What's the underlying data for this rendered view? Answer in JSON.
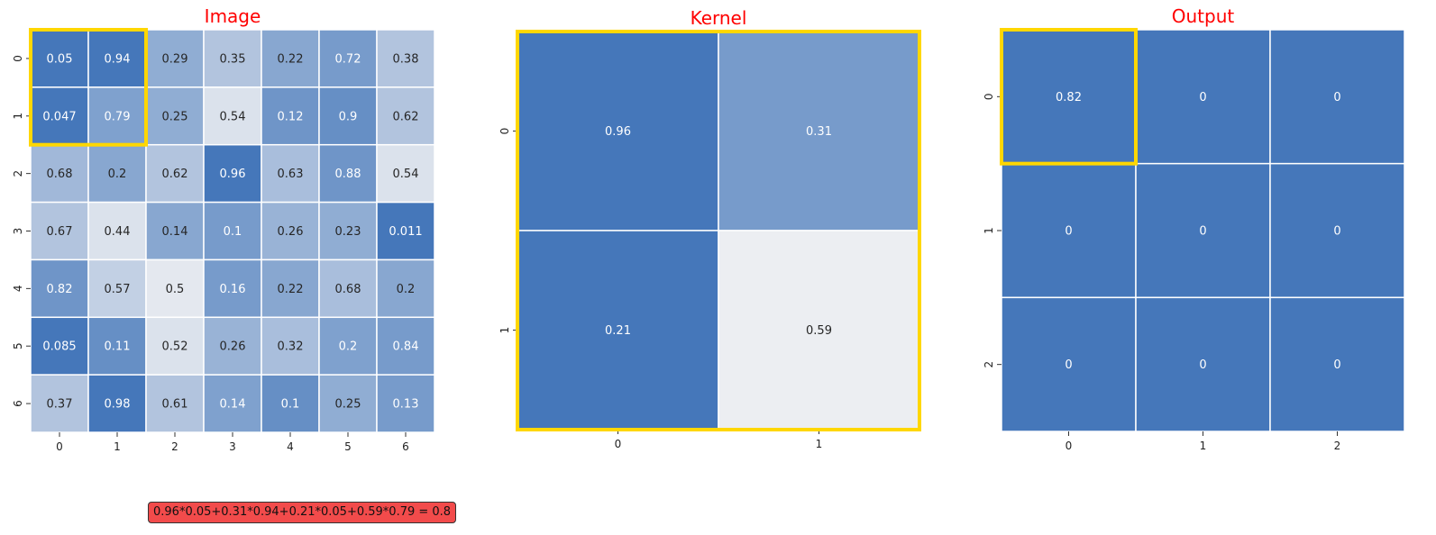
{
  "panels": [
    {
      "id": "image",
      "title": "Image",
      "row_ticks": [
        "0",
        "1",
        "2",
        "3",
        "4",
        "5",
        "6"
      ],
      "col_ticks": [
        "0",
        "1",
        "2",
        "3",
        "4",
        "5",
        "6"
      ],
      "values": [
        [
          "0.05",
          "0.94",
          "0.29",
          "0.35",
          "0.22",
          "0.72",
          "0.38"
        ],
        [
          "0.047",
          "0.79",
          "0.25",
          "0.54",
          "0.12",
          "0.9",
          "0.62"
        ],
        [
          "0.68",
          "0.2",
          "0.62",
          "0.96",
          "0.63",
          "0.88",
          "0.54"
        ],
        [
          "0.67",
          "0.44",
          "0.14",
          "0.1",
          "0.26",
          "0.23",
          "0.011"
        ],
        [
          "0.82",
          "0.57",
          "0.5",
          "0.16",
          "0.22",
          "0.68",
          "0.2"
        ],
        [
          "0.085",
          "0.11",
          "0.52",
          "0.26",
          "0.32",
          "0.2",
          "0.84"
        ],
        [
          "0.37",
          "0.98",
          "0.61",
          "0.14",
          "0.1",
          "0.25",
          "0.13"
        ]
      ],
      "intensity": [
        [
          1.0,
          1.0,
          0.55,
          0.35,
          0.6,
          0.7,
          0.35
        ],
        [
          1.0,
          0.65,
          0.55,
          0.1,
          0.75,
          0.8,
          0.35
        ],
        [
          0.45,
          0.6,
          0.35,
          1.0,
          0.4,
          0.75,
          0.1
        ],
        [
          0.35,
          0.1,
          0.6,
          0.7,
          0.5,
          0.55,
          1.0
        ],
        [
          0.75,
          0.25,
          0.05,
          0.7,
          0.6,
          0.4,
          0.6
        ],
        [
          1.0,
          0.8,
          0.1,
          0.5,
          0.4,
          0.65,
          0.7
        ],
        [
          0.35,
          1.0,
          0.35,
          0.65,
          0.8,
          0.55,
          0.7
        ]
      ],
      "highlight": {
        "row": 0,
        "col": 0,
        "size": 2
      }
    },
    {
      "id": "kernel",
      "title": "Kernel",
      "row_ticks": [
        "0",
        "1"
      ],
      "col_ticks": [
        "0",
        "1"
      ],
      "values": [
        [
          "0.96",
          "0.31"
        ],
        [
          "0.21",
          "0.59"
        ]
      ],
      "intensity": [
        [
          1.0,
          0.7
        ],
        [
          1.0,
          0.0
        ]
      ],
      "highlight": {
        "row": 0,
        "col": 0,
        "size": 2
      }
    },
    {
      "id": "output",
      "title": "Output",
      "row_ticks": [
        "0",
        "1",
        "2"
      ],
      "col_ticks": [
        "0",
        "1",
        "2"
      ],
      "values": [
        [
          "0.82",
          "0",
          "0"
        ],
        [
          "0",
          "0",
          "0"
        ],
        [
          "0",
          "0",
          "0"
        ]
      ],
      "intensity": [
        [
          1.0,
          1.0,
          1.0
        ],
        [
          1.0,
          1.0,
          1.0
        ],
        [
          1.0,
          1.0,
          1.0
        ]
      ],
      "highlight": {
        "row": 0,
        "col": 0,
        "size": 1
      }
    }
  ],
  "formula": "0.96*0.05+0.31*0.94+0.21*0.05+0.59*0.79 = 0.8",
  "colors": {
    "title": "#ff0000",
    "cell_low": "#eceef2",
    "cell_high": "#4577ba",
    "highlight": "#ffd700",
    "formula_bg": "#f24b4b"
  }
}
